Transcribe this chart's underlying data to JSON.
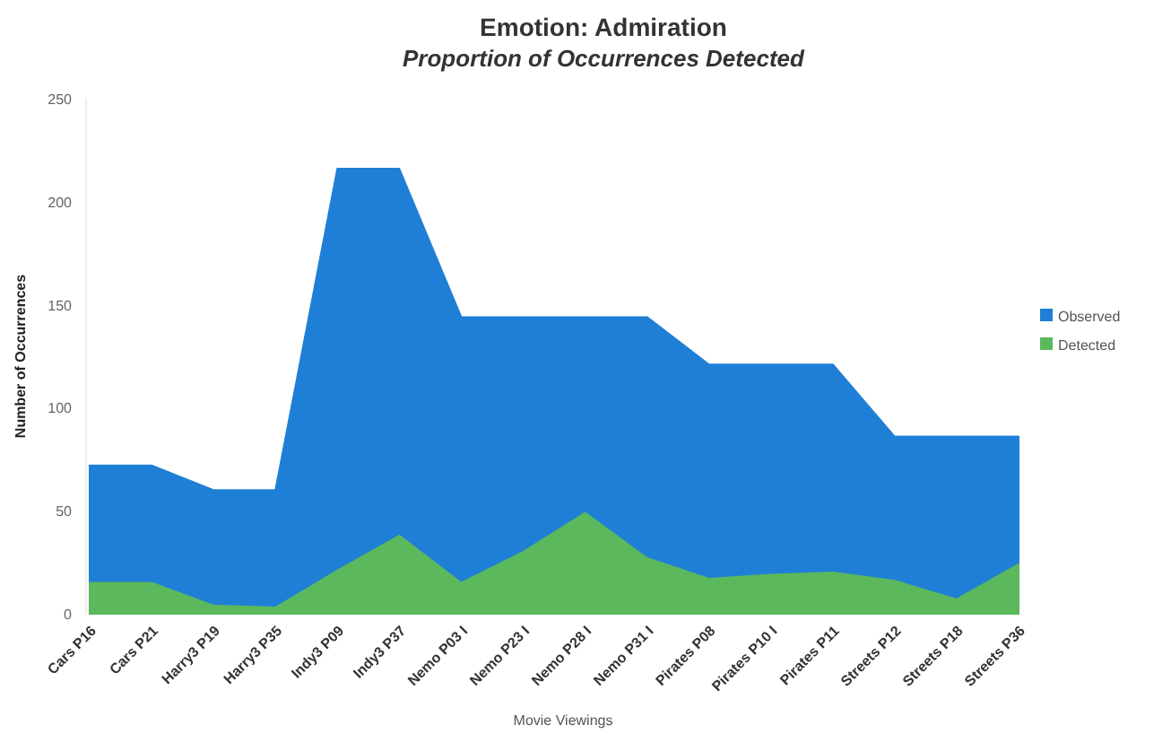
{
  "chart_data": {
    "type": "area",
    "title": "Emotion: Admiration",
    "subtitle": "Proportion of Occurrences Detected",
    "xlabel": "Movie Viewings",
    "ylabel": "Number of Occurrences",
    "categories": [
      "Cars P16",
      "Cars P21",
      "Harry3 P19",
      "Harry3 P35",
      "Indy3 P09",
      "Indy3 P37",
      "Nemo P03 I",
      "Nemo P23 I",
      "Nemo P28 I",
      "Nemo P31 I",
      "Pirates P08",
      "Pirates P10 I",
      "Pirates P11",
      "Streets P12",
      "Streets P18",
      "Streets P36"
    ],
    "series": [
      {
        "name": "Observed",
        "color": "#1f7fd6",
        "values": [
          72,
          72,
          60,
          60,
          216,
          216,
          144,
          144,
          144,
          144,
          121,
          121,
          121,
          86,
          86,
          86
        ]
      },
      {
        "name": "Detected",
        "color": "#5cb85c",
        "values": [
          15,
          15,
          4,
          3,
          21,
          38,
          15,
          30,
          49,
          27,
          17,
          19,
          20,
          16,
          7,
          24
        ]
      }
    ],
    "ylim": [
      0,
      250
    ],
    "yticks": [
      0,
      50,
      100,
      150,
      200,
      250
    ],
    "legend": "right"
  }
}
